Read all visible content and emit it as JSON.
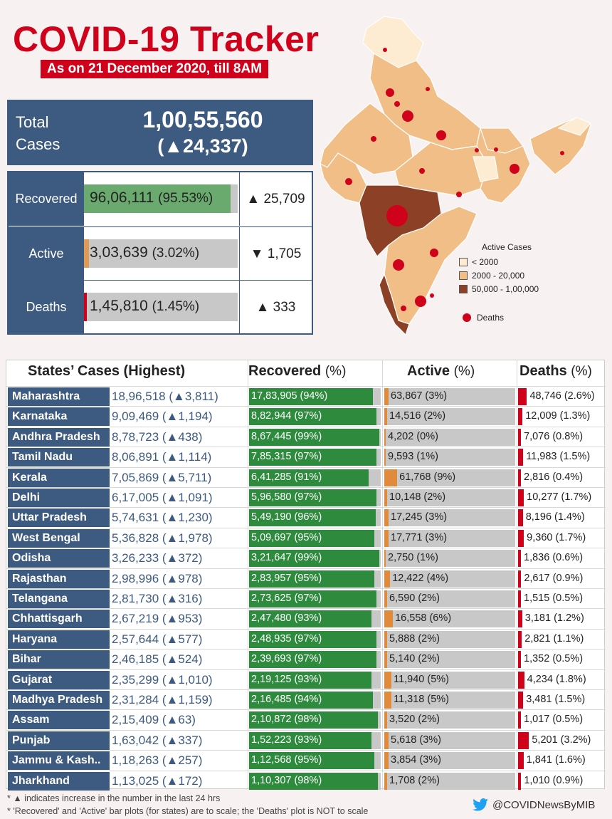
{
  "header": {
    "title": "COVID-19 Tracker",
    "subtitle": "As on 21 December 2020, till 8AM"
  },
  "total": {
    "label_line1": "Total",
    "label_line2": "Cases",
    "value": "1,00,55,560",
    "change": "(▲24,337)"
  },
  "summary": [
    {
      "label": "Recovered",
      "value": "96,06,111",
      "pct_text": "(95.53%)",
      "pct": 95.53,
      "change": "▲ 25,709",
      "color": "#6aaa6e"
    },
    {
      "label": "Active",
      "value": "3,03,639",
      "pct_text": "(3.02%)",
      "pct": 3.02,
      "change": "▼ 1,705",
      "color": "#e09a55"
    },
    {
      "label": "Deaths",
      "value": "1,45,810",
      "pct_text": "(1.45%)",
      "pct": 1.45,
      "change": "▲ 333",
      "color": "#d0021b"
    }
  ],
  "map_legend": {
    "title": "Active Cases",
    "items": [
      {
        "label": "< 2000",
        "color": "#fdebd2"
      },
      {
        "label": "2000 - 20,000",
        "color": "#f0be86"
      },
      {
        "label": "50,000 - 1,00,000",
        "color": "#8c4126"
      }
    ],
    "deaths_label": "Deaths"
  },
  "table_headers": {
    "states": "States’ Cases (Highest)",
    "recovered": "Recovered",
    "active": "Active",
    "deaths": "Deaths",
    "pct_suffix": "(%)"
  },
  "colors": {
    "recovered": "#2e8b3e",
    "active": "#e08a3c",
    "deaths": "#d0021b",
    "state_bg": "#3d5a80"
  },
  "chart_data": {
    "type": "bar",
    "categories": [
      "Maharashtra",
      "Karnataka",
      "Andhra Pradesh",
      "Tamil Nadu",
      "Kerala",
      "Delhi",
      "Uttar Pradesh",
      "West Bengal",
      "Odisha",
      "Rajasthan",
      "Telangana",
      "Chhattisgarh",
      "Haryana",
      "Bihar",
      "Gujarat",
      "Madhya Pradesh",
      "Assam",
      "Punjab",
      "Jammu & Kash..",
      "Jharkhand"
    ],
    "rows": [
      {
        "state": "Maharashtra",
        "cases": "18,96,518 (▲3,811)",
        "rec": "17,83,905 (94%)",
        "rec_pct": 94,
        "act": "63,867 (3%)",
        "act_pct": 3,
        "dea": "48,746 (2.6%)",
        "dea_pct": 2.6
      },
      {
        "state": "Karnataka",
        "cases": "9,09,469 (▲1,194)",
        "rec": "8,82,944 (97%)",
        "rec_pct": 97,
        "act": "14,516 (2%)",
        "act_pct": 2,
        "dea": "12,009 (1.3%)",
        "dea_pct": 1.3
      },
      {
        "state": "Andhra Pradesh",
        "cases": "8,78,723 (▲438)",
        "rec": "8,67,445 (99%)",
        "rec_pct": 99,
        "act": "4,202 (0%)",
        "act_pct": 0,
        "dea": "7,076 (0.8%)",
        "dea_pct": 0.8
      },
      {
        "state": "Tamil Nadu",
        "cases": "8,06,891 (▲1,114)",
        "rec": "7,85,315 (97%)",
        "rec_pct": 97,
        "act": "9,593 (1%)",
        "act_pct": 1,
        "dea": "11,983 (1.5%)",
        "dea_pct": 1.5
      },
      {
        "state": "Kerala",
        "cases": "7,05,869 (▲5,711)",
        "rec": "6,41,285 (91%)",
        "rec_pct": 91,
        "act": "61,768 (9%)",
        "act_pct": 9,
        "dea": "2,816 (0.4%)",
        "dea_pct": 0.4
      },
      {
        "state": "Delhi",
        "cases": "6,17,005 (▲1,091)",
        "rec": "5,96,580 (97%)",
        "rec_pct": 97,
        "act": "10,148 (2%)",
        "act_pct": 2,
        "dea": "10,277 (1.7%)",
        "dea_pct": 1.7
      },
      {
        "state": "Uttar Pradesh",
        "cases": "5,74,631 (▲1,230)",
        "rec": "5,49,190 (96%)",
        "rec_pct": 96,
        "act": "17,245 (3%)",
        "act_pct": 3,
        "dea": "8,196 (1.4%)",
        "dea_pct": 1.4
      },
      {
        "state": "West Bengal",
        "cases": "5,36,828 (▲1,978)",
        "rec": "5,09,697 (95%)",
        "rec_pct": 95,
        "act": "17,771 (3%)",
        "act_pct": 3,
        "dea": "9,360 (1.7%)",
        "dea_pct": 1.7
      },
      {
        "state": "Odisha",
        "cases": "3,26,233 (▲372)",
        "rec": "3,21,647 (99%)",
        "rec_pct": 99,
        "act": "2,750 (1%)",
        "act_pct": 1,
        "dea": "1,836 (0.6%)",
        "dea_pct": 0.6
      },
      {
        "state": "Rajasthan",
        "cases": "2,98,996 (▲978)",
        "rec": "2,83,957 (95%)",
        "rec_pct": 95,
        "act": "12,422 (4%)",
        "act_pct": 4,
        "dea": "2,617 (0.9%)",
        "dea_pct": 0.9
      },
      {
        "state": "Telangana",
        "cases": "2,81,730 (▲316)",
        "rec": "2,73,625 (97%)",
        "rec_pct": 97,
        "act": "6,590 (2%)",
        "act_pct": 2,
        "dea": "1,515 (0.5%)",
        "dea_pct": 0.5
      },
      {
        "state": "Chhattisgarh",
        "cases": "2,67,219 (▲953)",
        "rec": "2,47,480 (93%)",
        "rec_pct": 93,
        "act": "16,558 (6%)",
        "act_pct": 6,
        "dea": "3,181 (1.2%)",
        "dea_pct": 1.2
      },
      {
        "state": "Haryana",
        "cases": "2,57,644 (▲577)",
        "rec": "2,48,935 (97%)",
        "rec_pct": 97,
        "act": "5,888 (2%)",
        "act_pct": 2,
        "dea": "2,821 (1.1%)",
        "dea_pct": 1.1
      },
      {
        "state": "Bihar",
        "cases": "2,46,185 (▲524)",
        "rec": "2,39,693 (97%)",
        "rec_pct": 97,
        "act": "5,140 (2%)",
        "act_pct": 2,
        "dea": "1,352 (0.5%)",
        "dea_pct": 0.5
      },
      {
        "state": "Gujarat",
        "cases": "2,35,299 (▲1,010)",
        "rec": "2,19,125 (93%)",
        "rec_pct": 93,
        "act": "11,940 (5%)",
        "act_pct": 5,
        "dea": "4,234 (1.8%)",
        "dea_pct": 1.8
      },
      {
        "state": "Madhya Pradesh",
        "cases": "2,31,284 (▲1,159)",
        "rec": "2,16,485 (94%)",
        "rec_pct": 94,
        "act": "11,318 (5%)",
        "act_pct": 5,
        "dea": "3,481 (1.5%)",
        "dea_pct": 1.5
      },
      {
        "state": "Assam",
        "cases": "2,15,409 (▲63)",
        "rec": "2,10,872 (98%)",
        "rec_pct": 98,
        "act": "3,520 (2%)",
        "act_pct": 2,
        "dea": "1,017 (0.5%)",
        "dea_pct": 0.5
      },
      {
        "state": "Punjab",
        "cases": "1,63,042 (▲337)",
        "rec": "1,52,223 (93%)",
        "rec_pct": 93,
        "act": "5,618 (3%)",
        "act_pct": 3,
        "dea": "5,201 (3.2%)",
        "dea_pct": 3.2
      },
      {
        "state": "Jammu & Kash..",
        "cases": "1,18,263 (▲257)",
        "rec": "1,12,568 (95%)",
        "rec_pct": 95,
        "act": "3,854 (3%)",
        "act_pct": 3,
        "dea": "1,841 (1.6%)",
        "dea_pct": 1.6
      },
      {
        "state": "Jharkhand",
        "cases": "1,13,025 (▲172)",
        "rec": "1,10,307 (98%)",
        "rec_pct": 98,
        "act": "1,708 (2%)",
        "act_pct": 2,
        "dea": "1,010 (0.9%)",
        "dea_pct": 0.9
      }
    ]
  },
  "footnotes": {
    "note1": "* ▲ indicates increase in the number in the last 24 hrs",
    "note2": "* 'Recovered' and 'Active' bar plots (for states) are to scale; the 'Deaths' plot is NOT to scale"
  },
  "twitter_handle": "@COVIDNewsByMIB",
  "twitter_icon": "twitter-bird-icon"
}
